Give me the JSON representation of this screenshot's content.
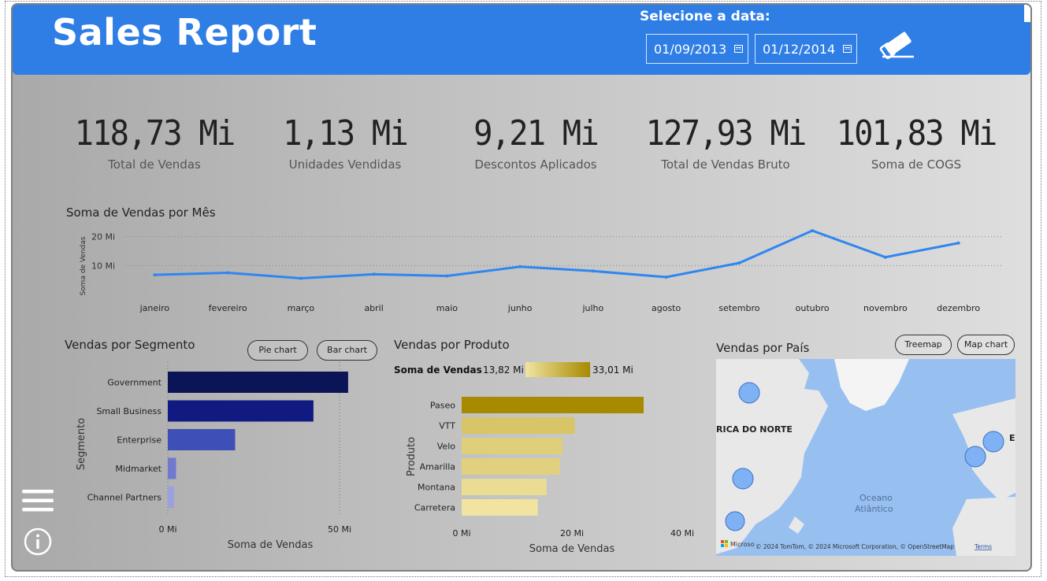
{
  "header": {
    "title": "Sales Report",
    "date_label": "Selecione a data:",
    "date_start": "01/09/2013",
    "date_end": "01/12/2014",
    "more_label": "⋯"
  },
  "kpis": [
    {
      "value": "118,73 Mi",
      "label": "Total de Vendas"
    },
    {
      "value": "1,13 Mi",
      "label": "Unidades Vendidas"
    },
    {
      "value": "9,21 Mi",
      "label": "Descontos Aplicados"
    },
    {
      "value": "127,93 Mi",
      "label": "Total de Vendas Bruto"
    },
    {
      "value": "101,83 Mi",
      "label": "Soma de COGS"
    }
  ],
  "colors": {
    "header": "#2f7ee6",
    "line": "#2f86f0",
    "segment_bars": [
      "#0b1457",
      "#111a80",
      "#3f4fb8",
      "#7178d0",
      "#9aa0e0"
    ],
    "product_gradient_low": "#f0e4a0",
    "product_gradient_high": "#a78a00"
  },
  "chart_data": [
    {
      "type": "line",
      "title": "Soma de Vendas por Mês",
      "ylabel": "Soma de Vendas",
      "categories": [
        "janeiro",
        "fevereiro",
        "março",
        "abril",
        "maio",
        "junho",
        "julho",
        "agosto",
        "setembro",
        "outubro",
        "novembro",
        "dezembro"
      ],
      "values": [
        6.8,
        7.5,
        5.6,
        7.0,
        6.4,
        9.6,
        8.1,
        6.0,
        10.9,
        22.1,
        12.9,
        17.8
      ],
      "yticks": [
        {
          "v": 10,
          "label": "10 Mi"
        },
        {
          "v": 20,
          "label": "20 Mi"
        }
      ],
      "ylim": [
        0,
        24
      ]
    },
    {
      "type": "bar",
      "title": "Vendas por Segmento",
      "xlabel": "Soma de Vendas",
      "ylabel": "Segmento",
      "categories": [
        "Government",
        "Small Business",
        "Enterprise",
        "Midmarket",
        "Channel Partners"
      ],
      "values": [
        52.5,
        42.4,
        19.6,
        2.4,
        1.8
      ],
      "xticks": [
        {
          "v": 0,
          "label": "0 Mi"
        },
        {
          "v": 50,
          "label": "50 Mi"
        }
      ],
      "xlim": [
        0,
        60
      ]
    },
    {
      "type": "bar",
      "title": "Vendas por Produto",
      "xlabel": "Soma de Vendas",
      "ylabel": "Produto",
      "legend_title": "Soma de Vendas",
      "legend_min": "13,82 Mi",
      "legend_max": "33,01 Mi",
      "categories": [
        "Paseo",
        "VTT",
        "Velo",
        "Amarilla",
        "Montana",
        "Carretera"
      ],
      "values": [
        33.0,
        20.5,
        18.3,
        17.8,
        15.4,
        13.8
      ],
      "xticks": [
        {
          "v": 0,
          "label": "0 Mi"
        },
        {
          "v": 20,
          "label": "20 Mi"
        },
        {
          "v": 40,
          "label": "40 Mi"
        }
      ],
      "xlim": [
        0,
        40
      ]
    }
  ],
  "segment_buttons": {
    "pie": "Pie chart",
    "bar": "Bar chart"
  },
  "country": {
    "title": "Vendas por País",
    "treemap": "Treemap",
    "mapchart": "Map chart",
    "label_na": "RICA DO NORTE",
    "label_ocean_1": "Oceano",
    "label_ocean_2": "Atlântico",
    "label_eu": "E",
    "ms_logo_text": "Microso",
    "attribution": "© 2024 TomTom, © 2024 Microsoft Corporation, © OpenStreetMap",
    "terms": "Terms"
  }
}
